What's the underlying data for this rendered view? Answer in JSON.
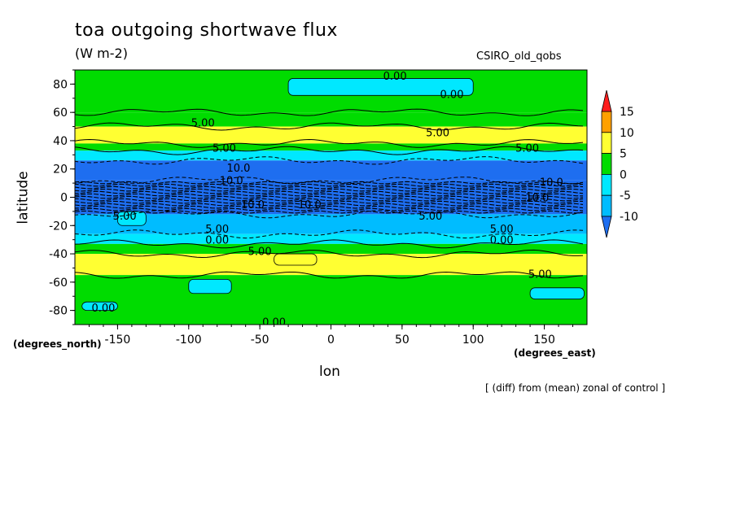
{
  "chart_data": {
    "type": "heatmap",
    "title": "toa outgoing shortwave flux",
    "units": "(W m-2)",
    "model_label": "CSIRO_old_qobs",
    "xlabel": "lon",
    "ylabel": "latitude",
    "x_units": "(degrees_east)",
    "y_units": "(degrees_north)",
    "note": "[ (diff) from (mean) zonal of control ]",
    "xlim": [
      -180,
      180
    ],
    "ylim": [
      -90,
      90
    ],
    "x_ticks": [
      -150,
      -100,
      -50,
      0,
      50,
      100,
      150
    ],
    "y_ticks": [
      -80,
      -60,
      -40,
      -20,
      0,
      20,
      40,
      60,
      80
    ],
    "x_tick_labels": [
      "-150",
      "-100",
      "-50",
      "0",
      "50",
      "100",
      "150"
    ],
    "y_tick_labels": [
      "-80",
      "-60",
      "-40",
      "-20",
      "0",
      "20",
      "40",
      "60",
      "80"
    ],
    "colorbar": {
      "ticks": [
        "15",
        "10",
        "5",
        "0",
        "-5",
        "-10"
      ],
      "levels": [
        -15,
        -10,
        -5,
        0,
        5,
        10,
        15,
        20
      ],
      "colors": [
        "#1e6ef0",
        "#00bcff",
        "#00e8ff",
        "#00dc00",
        "#ffff32",
        "#ffa000",
        "#ff1e1e"
      ],
      "extend": "both"
    },
    "bands": [
      {
        "lat": [
          60,
          90
        ],
        "value": 2
      },
      {
        "lat": [
          50,
          60
        ],
        "value": 3
      },
      {
        "lat": [
          38,
          50
        ],
        "value": 6
      },
      {
        "lat": [
          33,
          38
        ],
        "value": 2
      },
      {
        "lat": [
          26,
          33
        ],
        "value": -3
      },
      {
        "lat": [
          12,
          26
        ],
        "value": -11
      },
      {
        "lat": [
          -12,
          12
        ],
        "value": -12
      },
      {
        "lat": [
          -26,
          -12
        ],
        "value": -10
      },
      {
        "lat": [
          -33,
          -26
        ],
        "value": -3
      },
      {
        "lat": [
          -40,
          -33
        ],
        "value": 2
      },
      {
        "lat": [
          -55,
          -40
        ],
        "value": 5
      },
      {
        "lat": [
          -90,
          -55
        ],
        "value": 2
      }
    ],
    "patches": [
      {
        "lon": [
          -30,
          100
        ],
        "lat": [
          72,
          84
        ],
        "value": -3
      },
      {
        "lon": [
          -100,
          -70
        ],
        "lat": [
          -68,
          -58
        ],
        "value": -3
      },
      {
        "lon": [
          -175,
          -150
        ],
        "lat": [
          -80,
          -74
        ],
        "value": -3
      },
      {
        "lon": [
          140,
          178
        ],
        "lat": [
          -72,
          -64
        ],
        "value": -3
      },
      {
        "lon": [
          -150,
          -130
        ],
        "lat": [
          -20,
          -10
        ],
        "value": -3
      },
      {
        "lon": [
          -40,
          -10
        ],
        "lat": [
          -48,
          -40
        ],
        "value": 6
      }
    ],
    "contour_labels": [
      {
        "text": "0.00",
        "lon": 45,
        "lat": 86
      },
      {
        "text": "0.00",
        "lon": 85,
        "lat": 73
      },
      {
        "text": "5.00",
        "lon": -90,
        "lat": 53
      },
      {
        "text": "5.00",
        "lon": 75,
        "lat": 46
      },
      {
        "text": "5.00",
        "lon": 138,
        "lat": 35
      },
      {
        "text": "5.00",
        "lon": -75,
        "lat": 35
      },
      {
        "text": "10.0",
        "lon": -65,
        "lat": 21
      },
      {
        "text": "10.0",
        "lon": -70,
        "lat": 12
      },
      {
        "text": "10.0",
        "lon": 155,
        "lat": 11
      },
      {
        "text": "10.0",
        "lon": -55,
        "lat": -5
      },
      {
        "text": "10.0",
        "lon": -15,
        "lat": -5
      },
      {
        "text": "10.0",
        "lon": 145,
        "lat": 0
      },
      {
        "text": "5.00",
        "lon": -145,
        "lat": -13
      },
      {
        "text": "5.00",
        "lon": 70,
        "lat": -13
      },
      {
        "text": "5.00",
        "lon": -80,
        "lat": -22
      },
      {
        "text": "5.00",
        "lon": 120,
        "lat": -22
      },
      {
        "text": "0.00",
        "lon": -80,
        "lat": -30
      },
      {
        "text": "0.00",
        "lon": 120,
        "lat": -30
      },
      {
        "text": "5.00",
        "lon": -50,
        "lat": -38
      },
      {
        "text": "5.00",
        "lon": 147,
        "lat": -54
      },
      {
        "text": "0.00",
        "lon": -160,
        "lat": -78
      },
      {
        "text": "0.00",
        "lon": -40,
        "lat": -88
      }
    ]
  }
}
